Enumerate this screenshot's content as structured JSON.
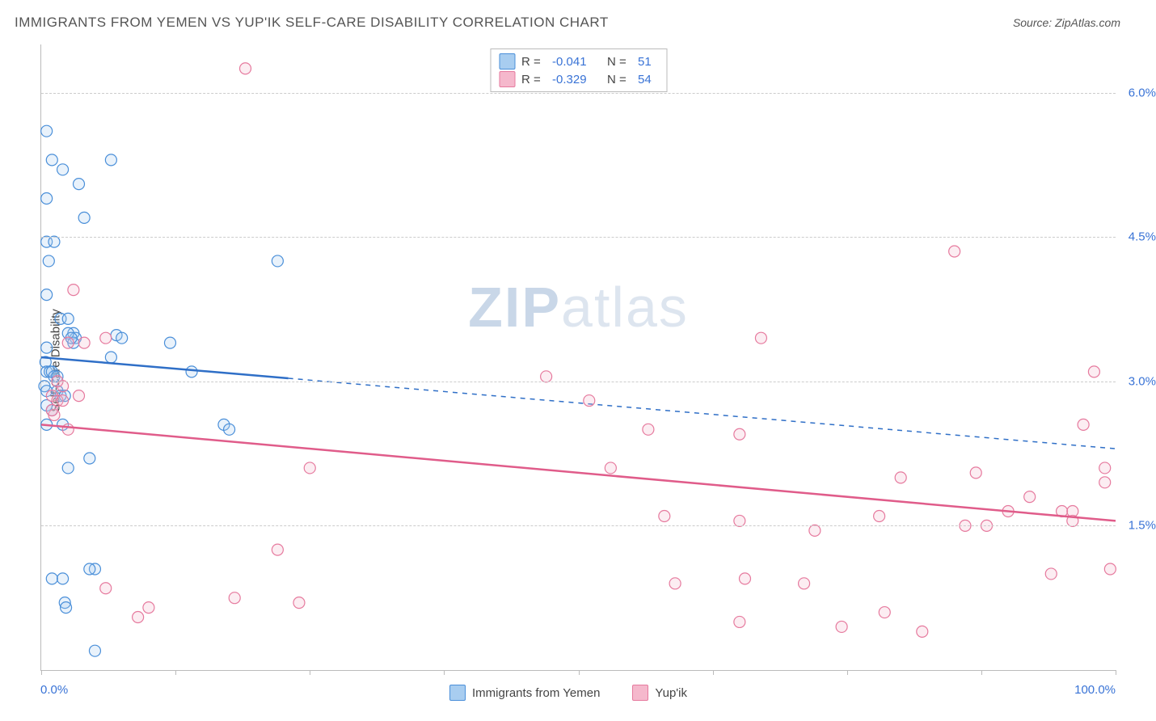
{
  "title": "IMMIGRANTS FROM YEMEN VS YUP'IK SELF-CARE DISABILITY CORRELATION CHART",
  "source_label": "Source:",
  "source_name": "ZipAtlas.com",
  "ylabel": "Self-Care Disability",
  "watermark_bold": "ZIP",
  "watermark_light": "atlas",
  "chart": {
    "type": "scatter",
    "xlim": [
      0,
      100
    ],
    "ylim": [
      0,
      6.5
    ],
    "x_tick_positions": [
      0,
      12.5,
      25,
      37.5,
      50,
      62.5,
      75,
      87.5,
      100
    ],
    "y_gridlines": [
      1.5,
      3.0,
      4.5,
      6.0
    ],
    "y_tick_labels": [
      "1.5%",
      "3.0%",
      "4.5%",
      "6.0%"
    ],
    "x_left_label": "0.0%",
    "x_right_label": "100.0%",
    "background_color": "#ffffff",
    "grid_color": "#cccccc",
    "axis_color": "#bbbbbb",
    "marker_radius": 7,
    "marker_stroke_width": 1.2,
    "marker_fill_opacity": 0.25,
    "trendline_width": 2.5,
    "series": [
      {
        "name": "Immigrants from Yemen",
        "color_stroke": "#4a8fd9",
        "color_fill": "#a8cdf0",
        "trend_color": "#2f6fc7",
        "R": "-0.041",
        "N": "51",
        "trendline": {
          "x1": 0,
          "y1": 3.25,
          "x2": 100,
          "y2": 2.3,
          "solid_until_x": 23
        },
        "points": [
          [
            0.5,
            5.6
          ],
          [
            1,
            5.3
          ],
          [
            2,
            5.2
          ],
          [
            6.5,
            5.3
          ],
          [
            3.5,
            5.05
          ],
          [
            0.5,
            4.9
          ],
          [
            4,
            4.7
          ],
          [
            0.5,
            4.45
          ],
          [
            1.2,
            4.45
          ],
          [
            0.7,
            4.25
          ],
          [
            0.5,
            3.9
          ],
          [
            1.8,
            3.65
          ],
          [
            2.5,
            3.65
          ],
          [
            3,
            3.5
          ],
          [
            3.2,
            3.45
          ],
          [
            7,
            3.48
          ],
          [
            7.5,
            3.45
          ],
          [
            3,
            3.4
          ],
          [
            12,
            3.4
          ],
          [
            0.5,
            3.35
          ],
          [
            6.5,
            3.25
          ],
          [
            0.4,
            3.2
          ],
          [
            0.5,
            3.1
          ],
          [
            0.8,
            3.1
          ],
          [
            1,
            3.1
          ],
          [
            1.2,
            3.05
          ],
          [
            1.5,
            3.05
          ],
          [
            0.3,
            2.95
          ],
          [
            0.5,
            2.9
          ],
          [
            1.5,
            2.9
          ],
          [
            1.8,
            2.85
          ],
          [
            2.2,
            2.85
          ],
          [
            0.5,
            2.75
          ],
          [
            1,
            2.7
          ],
          [
            2,
            2.55
          ],
          [
            0.5,
            2.55
          ],
          [
            4.5,
            2.2
          ],
          [
            2.5,
            2.1
          ],
          [
            5,
            1.05
          ],
          [
            1,
            0.95
          ],
          [
            2,
            0.95
          ],
          [
            2.2,
            0.7
          ],
          [
            2.3,
            0.65
          ],
          [
            5,
            0.2
          ],
          [
            17,
            2.55
          ],
          [
            17.5,
            2.5
          ],
          [
            22,
            4.25
          ],
          [
            2.5,
            3.5
          ],
          [
            2.8,
            3.45
          ],
          [
            14,
            3.1
          ],
          [
            4.5,
            1.05
          ]
        ]
      },
      {
        "name": "Yup'ik",
        "color_stroke": "#e67a9e",
        "color_fill": "#f5b8cc",
        "trend_color": "#e05c8a",
        "R": "-0.329",
        "N": "54",
        "trendline": {
          "x1": 0,
          "y1": 2.55,
          "x2": 100,
          "y2": 1.55,
          "solid_until_x": 100
        },
        "points": [
          [
            19,
            6.25
          ],
          [
            3,
            3.95
          ],
          [
            3.5,
            2.85
          ],
          [
            1,
            2.85
          ],
          [
            1.5,
            2.8
          ],
          [
            2,
            2.8
          ],
          [
            1.2,
            2.65
          ],
          [
            1,
            2.7
          ],
          [
            6,
            3.45
          ],
          [
            2.5,
            2.5
          ],
          [
            25,
            2.1
          ],
          [
            22,
            1.25
          ],
          [
            18,
            0.75
          ],
          [
            10,
            0.65
          ],
          [
            6,
            0.85
          ],
          [
            24,
            0.7
          ],
          [
            9,
            0.55
          ],
          [
            51,
            2.8
          ],
          [
            47,
            3.05
          ],
          [
            56.5,
            2.5
          ],
          [
            53,
            2.1
          ],
          [
            65,
            2.45
          ],
          [
            59,
            0.9
          ],
          [
            58,
            1.6
          ],
          [
            65,
            1.55
          ],
          [
            65.5,
            0.95
          ],
          [
            67,
            3.45
          ],
          [
            71,
            0.9
          ],
          [
            72,
            1.45
          ],
          [
            78,
            1.6
          ],
          [
            78.5,
            0.6
          ],
          [
            80,
            2.0
          ],
          [
            82,
            0.4
          ],
          [
            74.5,
            0.45
          ],
          [
            85,
            4.35
          ],
          [
            86,
            1.5
          ],
          [
            87,
            2.05
          ],
          [
            88,
            1.5
          ],
          [
            90,
            1.65
          ],
          [
            92,
            1.8
          ],
          [
            94,
            1.0
          ],
          [
            95,
            1.65
          ],
          [
            96,
            1.55
          ],
          [
            97,
            2.55
          ],
          [
            98,
            3.1
          ],
          [
            99,
            2.1
          ],
          [
            99,
            1.95
          ],
          [
            99.5,
            1.05
          ],
          [
            96,
            1.65
          ],
          [
            65,
            0.5
          ],
          [
            2,
            2.95
          ],
          [
            4,
            3.4
          ],
          [
            2.5,
            3.4
          ],
          [
            1.5,
            3.0
          ]
        ]
      }
    ]
  },
  "legend_top": {
    "R_label": "R =",
    "N_label": "N ="
  },
  "legend_bottom_labels": [
    "Immigrants from Yemen",
    "Yup'ik"
  ]
}
